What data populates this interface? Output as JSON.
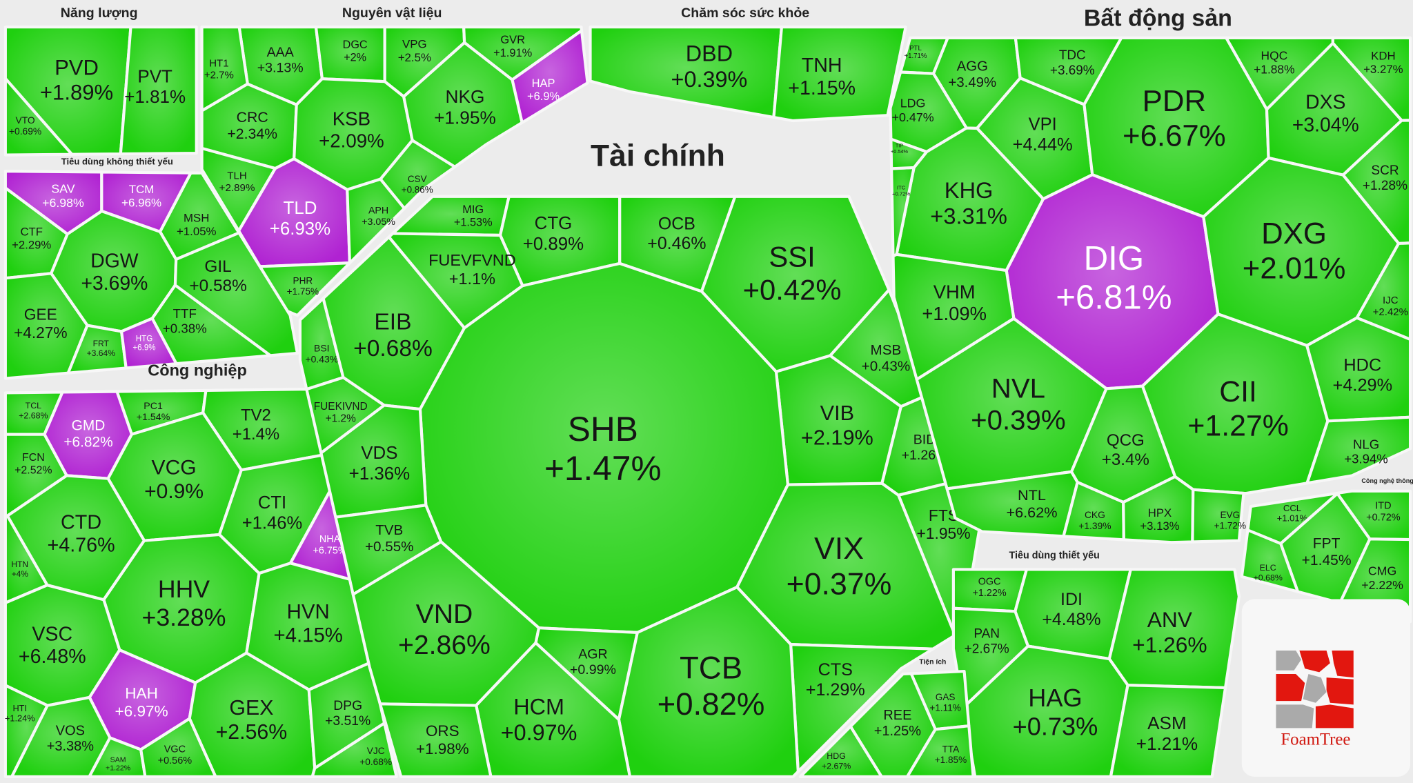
{
  "chart_data": {
    "type": "treemap",
    "groups": [
      {
        "name": "Năng lượng",
        "categories": [
          "PVD",
          "PVT",
          "VTO"
        ],
        "values": [
          1.89,
          1.81,
          0.69
        ],
        "value_labels": [
          "+1.89%",
          "+1.81%",
          "+0.69%"
        ],
        "colors": [
          "#1fd00f",
          "#1fd00f",
          "#1fd00f"
        ]
      },
      {
        "name": "Nguyên vật liệu",
        "categories": [
          "AAA",
          "DGC",
          "VPG",
          "GVR",
          "HAP",
          "HT1",
          "CRC",
          "KSB",
          "NKG",
          "TLH",
          "TLD",
          "CSV",
          "APH",
          "PHR"
        ],
        "values": [
          3.13,
          2,
          2.5,
          1.91,
          6.9,
          2.7,
          2.34,
          2.09,
          1.95,
          2.89,
          6.93,
          0.86,
          3.05,
          1.75
        ],
        "value_labels": [
          "+3.13%",
          "+2%",
          "+2.5%",
          "+1.91%",
          "+6.9%",
          "+2.7%",
          "+2.34%",
          "+2.09%",
          "+1.95%",
          "+2.89%",
          "+6.93%",
          "+0.86%",
          "+3.05%",
          "+1.75%"
        ],
        "colors": [
          "#1fd00f",
          "#1fd00f",
          "#1fd00f",
          "#1fd00f",
          "#b022d2",
          "#1fd00f",
          "#1fd00f",
          "#1fd00f",
          "#1fd00f",
          "#1fd00f",
          "#b022d2",
          "#1fd00f",
          "#1fd00f",
          "#1fd00f"
        ]
      },
      {
        "name": "Tiêu dùng không thiết yếu",
        "categories": [
          "SAV",
          "TCM",
          "MSH",
          "CTF",
          "DGW",
          "GIL",
          "GEE",
          "TTF",
          "FRT",
          "HTG"
        ],
        "values": [
          6.98,
          6.96,
          1.05,
          2.29,
          3.69,
          0.58,
          4.27,
          0.38,
          3.64,
          6.9
        ],
        "value_labels": [
          "+6.98%",
          "+6.96%",
          "+1.05%",
          "+2.29%",
          "+3.69%",
          "+0.58%",
          "+4.27%",
          "+0.38%",
          "+3.64%",
          "+6.9%"
        ],
        "colors": [
          "#b022d2",
          "#b022d2",
          "#1fd00f",
          "#1fd00f",
          "#1fd00f",
          "#1fd00f",
          "#1fd00f",
          "#1fd00f",
          "#1fd00f",
          "#b022d2"
        ]
      },
      {
        "name": "Công nghiệp",
        "categories": [
          "TCL",
          "GMD",
          "PC1",
          "TV2",
          "FCN",
          "VCG",
          "CTI",
          "CTD",
          "HTN",
          "NHA",
          "HHV",
          "HVN",
          "VSC",
          "HTI",
          "HAH",
          "GEX",
          "DPG",
          "VOS",
          "SAM",
          "VGC",
          "VJC"
        ],
        "values": [
          2.68,
          6.82,
          1.54,
          1.4,
          2.52,
          0.9,
          1.46,
          4.76,
          4,
          6.75,
          3.28,
          4.15,
          6.48,
          1.24,
          6.97,
          2.56,
          3.51,
          3.38,
          1.22,
          0.56,
          0.68
        ],
        "value_labels": [
          "+2.68%",
          "+6.82%",
          "+1.54%",
          "+1.4%",
          "+2.52%",
          "+0.9%",
          "+1.46%",
          "+4.76%",
          "+4%",
          "+6.75%",
          "+3.28%",
          "+4.15%",
          "+6.48%",
          "+1.24%",
          "+6.97%",
          "+2.56%",
          "+3.51%",
          "+3.38%",
          "+1.22%",
          "+0.56%",
          "+0.68%"
        ],
        "colors": [
          "#1fd00f",
          "#b022d2",
          "#1fd00f",
          "#1fd00f",
          "#1fd00f",
          "#1fd00f",
          "#1fd00f",
          "#1fd00f",
          "#1fd00f",
          "#b022d2",
          "#1fd00f",
          "#1fd00f",
          "#1fd00f",
          "#1fd00f",
          "#b022d2",
          "#1fd00f",
          "#1fd00f",
          "#1fd00f",
          "#1fd00f",
          "#1fd00f",
          "#1fd00f"
        ]
      },
      {
        "name": "Chăm sóc sức khỏe",
        "categories": [
          "DBD",
          "TNH"
        ],
        "values": [
          0.39,
          1.15
        ],
        "value_labels": [
          "+0.39%",
          "+1.15%"
        ],
        "colors": [
          "#1fd00f",
          "#1fd00f"
        ]
      },
      {
        "name": "Tài chính",
        "categories": [
          "MIG",
          "CTG",
          "OCB",
          "FUEVFVND",
          "SSI",
          "BSI",
          "EIB",
          "MSB",
          "FUEKIVND",
          "VIB",
          "SHB",
          "BID",
          "VDS",
          "FTS",
          "TVB",
          "VIX",
          "VND",
          "AGR",
          "CTS",
          "TCB",
          "HCM",
          "ORS"
        ],
        "values": [
          1.53,
          0.89,
          0.46,
          1.1,
          0.42,
          0.43,
          0.68,
          0.43,
          1.2,
          2.19,
          1.47,
          1.26,
          1.36,
          1.95,
          0.55,
          0.37,
          2.86,
          0.99,
          1.29,
          0.82,
          0.97,
          1.98
        ],
        "value_labels": [
          "+1.53%",
          "+0.89%",
          "+0.46%",
          "+1.1%",
          "+0.42%",
          "+0.43%",
          "+0.68%",
          "+0.43%",
          "+1.2%",
          "+2.19%",
          "+1.47%",
          "+1.26%",
          "+1.36%",
          "+1.95%",
          "+0.55%",
          "+0.37%",
          "+2.86%",
          "+0.99%",
          "+1.29%",
          "+0.82%",
          "+0.97%",
          "+1.98%"
        ],
        "colors": [
          "#1fd00f",
          "#1fd00f",
          "#1fd00f",
          "#1fd00f",
          "#1fd00f",
          "#1fd00f",
          "#1fd00f",
          "#1fd00f",
          "#1fd00f",
          "#1fd00f",
          "#1fd00f",
          "#1fd00f",
          "#1fd00f",
          "#1fd00f",
          "#1fd00f",
          "#1fd00f",
          "#1fd00f",
          "#1fd00f",
          "#1fd00f",
          "#1fd00f",
          "#1fd00f",
          "#1fd00f"
        ]
      },
      {
        "name": "Bất động sản",
        "categories": [
          "PTL",
          "AGG",
          "TDC",
          "HQC",
          "KDH",
          "LDG",
          "VPI",
          "PDR",
          "DXS",
          "SCR",
          "KHG",
          "ITC",
          "DIG",
          "DXG",
          "VHM",
          "NVL",
          "CII",
          "HDC",
          "QCG",
          "NLG",
          "NTL",
          "CKG",
          "HPX",
          "EVG",
          "TIP",
          "IJC"
        ],
        "values": [
          1.71,
          3.49,
          3.69,
          1.88,
          3.27,
          0.47,
          4.44,
          6.67,
          3.04,
          1.28,
          3.31,
          0.72,
          6.81,
          2.01,
          1.09,
          0.39,
          1.27,
          4.29,
          3.4,
          3.94,
          6.62,
          1.39,
          3.13,
          1.72,
          0.54,
          2.42
        ],
        "value_labels": [
          "+1.71%",
          "+3.49%",
          "+3.69%",
          "+1.88%",
          "+3.27%",
          "+0.47%",
          "+4.44%",
          "+6.67%",
          "+3.04%",
          "+1.28%",
          "+3.31%",
          "+0.72%",
          "+6.81%",
          "+2.01%",
          "+1.09%",
          "+0.39%",
          "+1.27%",
          "+4.29%",
          "+3.4%",
          "+3.94%",
          "+6.62%",
          "+1.39%",
          "+3.13%",
          "+1.72%",
          "+0.54%",
          "+2.42%"
        ],
        "colors": [
          "#1fd00f",
          "#1fd00f",
          "#1fd00f",
          "#1fd00f",
          "#1fd00f",
          "#1fd00f",
          "#1fd00f",
          "#1fd00f",
          "#1fd00f",
          "#1fd00f",
          "#1fd00f",
          "#1fd00f",
          "#b022d2",
          "#1fd00f",
          "#1fd00f",
          "#1fd00f",
          "#1fd00f",
          "#1fd00f",
          "#1fd00f",
          "#1fd00f",
          "#1fd00f",
          "#1fd00f",
          "#1fd00f",
          "#1fd00f",
          "#1fd00f",
          "#1fd00f"
        ]
      },
      {
        "name": "Công nghệ thông tin",
        "categories": [
          "ITD",
          "CCL",
          "FPT",
          "ELC",
          "CMG"
        ],
        "values": [
          0.72,
          1.01,
          1.45,
          0.68,
          2.22
        ],
        "value_labels": [
          "+0.72%",
          "+1.01%",
          "+1.45%",
          "+0.68%",
          "+2.22%"
        ],
        "colors": [
          "#1fd00f",
          "#1fd00f",
          "#1fd00f",
          "#1fd00f",
          "#1fd00f"
        ]
      },
      {
        "name": "Tiêu dùng thiết yếu",
        "categories": [
          "OGC",
          "IDI",
          "ANV",
          "PAN",
          "HAG",
          "ASM"
        ],
        "values": [
          1.22,
          4.48,
          1.26,
          2.67,
          0.73,
          1.21
        ],
        "value_labels": [
          "+1.22%",
          "+4.48%",
          "+1.26%",
          "+2.67%",
          "+0.73%",
          "+1.21%"
        ],
        "colors": [
          "#1fd00f",
          "#1fd00f",
          "#1fd00f",
          "#1fd00f",
          "#1fd00f",
          "#1fd00f"
        ]
      },
      {
        "name": "Tiện ích",
        "categories": [
          "GAS",
          "REE",
          "TTA",
          "HDG"
        ],
        "values": [
          1.11,
          1.25,
          1.85,
          2.67
        ],
        "value_labels": [
          "+1.11%",
          "+1.25%",
          "+1.85%",
          "+2.67%"
        ],
        "colors": [
          "#1fd00f",
          "#1fd00f",
          "#1fd00f",
          "#1fd00f"
        ]
      }
    ]
  },
  "logo_text": "FoamTree"
}
